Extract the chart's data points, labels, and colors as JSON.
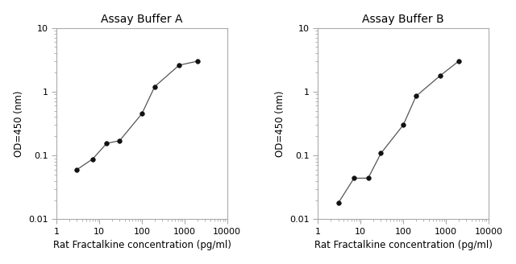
{
  "chart_A": {
    "title": "Assay Buffer A",
    "x": [
      3,
      7,
      15,
      30,
      100,
      200,
      750,
      2000
    ],
    "y": [
      0.06,
      0.088,
      0.155,
      0.17,
      0.45,
      1.2,
      2.6,
      3.0
    ]
  },
  "chart_B": {
    "title": "Assay Buffer B",
    "x": [
      3,
      7,
      15,
      30,
      100,
      200,
      750,
      2000
    ],
    "y": [
      0.018,
      0.044,
      0.044,
      0.108,
      0.3,
      0.85,
      1.8,
      3.0
    ]
  },
  "xlabel": "Rat Fractalkine concentration (pg/ml)",
  "ylabel": "OD=450 (nm)",
  "xlim": [
    1,
    10000
  ],
  "ylim": [
    0.01,
    10
  ],
  "xticks": [
    1,
    10,
    100,
    1000,
    10000
  ],
  "yticks": [
    0.01,
    0.1,
    1,
    10
  ],
  "xtick_labels": [
    "1",
    "10",
    "100",
    "1000",
    "10000"
  ],
  "ytick_labels": [
    "0.01",
    "0.1",
    "1",
    "10"
  ],
  "line_color": "#555555",
  "marker": "o",
  "marker_color": "#111111",
  "marker_size": 4,
  "bg_color": "#ffffff",
  "title_fontsize": 10,
  "label_fontsize": 8.5,
  "tick_fontsize": 8,
  "spine_color": "#aaaaaa",
  "spine_linewidth": 0.8
}
